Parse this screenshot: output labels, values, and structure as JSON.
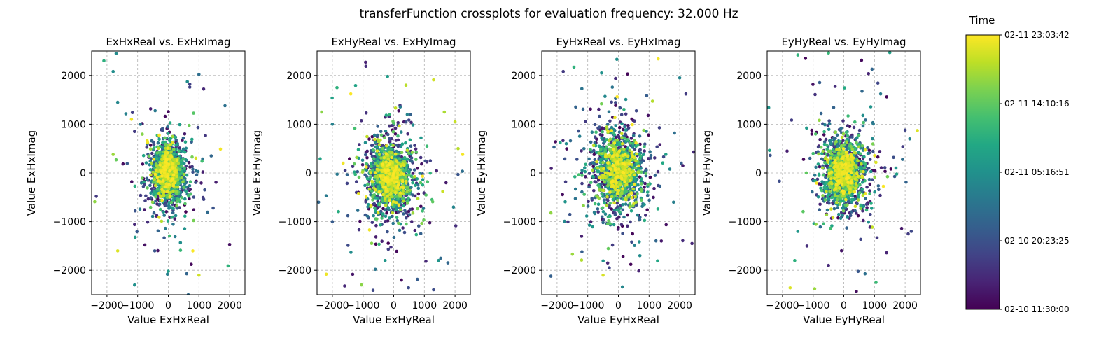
{
  "figure": {
    "title": "transferFunction crossplots for evaluation frequency: 32.000 Hz"
  },
  "colorbar": {
    "label": "Time",
    "colormap": "viridis",
    "ticks": [
      "02-11 23:03:42",
      "02-11 14:10:16",
      "02-11 05:16:51",
      "02-10 20:23:25",
      "02-10 11:30:00"
    ]
  },
  "chart_data": [
    {
      "type": "scatter",
      "title": "ExHxReal vs. ExHxImag",
      "xlabel": "Value ExHxReal",
      "ylabel": "Value ExHxImag",
      "xlim": [
        -2500,
        2500
      ],
      "ylim": [
        -2500,
        2500
      ],
      "xticks": [
        -2000,
        -1000,
        0,
        1000,
        2000
      ],
      "yticks": [
        -2000,
        -1000,
        0,
        1000,
        2000
      ],
      "grid": true,
      "center": [
        0,
        0
      ],
      "spread": [
        300,
        350
      ],
      "n_points": 1500,
      "color_scale": "time (02-10 11:30:00 to 02-11 23:03:42)",
      "outliers": [
        [
          -1700,
          2450
        ],
        [
          -2100,
          2300
        ],
        [
          -1800,
          2080
        ],
        [
          -2350,
          -480
        ],
        [
          -2400,
          -590
        ],
        [
          1000,
          2020
        ],
        [
          700,
          1820
        ],
        [
          620,
          1870
        ],
        [
          700,
          1760
        ],
        [
          1850,
          1380
        ],
        [
          -1650,
          -1600
        ],
        [
          -1080,
          -1320
        ],
        [
          -1100,
          -1060
        ],
        [
          -1100,
          850
        ],
        [
          -1200,
          1100
        ],
        [
          1700,
          490
        ],
        [
          1100,
          240
        ],
        [
          1400,
          350
        ],
        [
          -1800,
          380
        ],
        [
          -1700,
          270
        ],
        [
          -1100,
          -2300
        ],
        [
          600,
          -2070
        ],
        [
          0,
          -2020
        ],
        [
          -30,
          -2080
        ],
        [
          1000,
          -2100
        ],
        [
          1950,
          -1910
        ],
        [
          2000,
          -1470
        ],
        [
          650,
          -2500
        ],
        [
          800,
          -1600
        ],
        [
          -1650,
          1450
        ]
      ]
    },
    {
      "type": "scatter",
      "title": "ExHyReal vs. ExHyImag",
      "xlabel": "Value ExHyReal",
      "ylabel": "Value ExHyImag",
      "xlim": [
        -2500,
        2500
      ],
      "ylim": [
        -2500,
        2500
      ],
      "xticks": [
        -2000,
        -1000,
        0,
        1000,
        2000
      ],
      "yticks": [
        -2000,
        -1000,
        0,
        1000,
        2000
      ],
      "grid": true,
      "center": [
        -100,
        -100
      ],
      "spread": [
        400,
        420
      ],
      "n_points": 1500,
      "color_scale": "time (02-10 11:30:00 to 02-11 23:03:42)",
      "outliers": [
        [
          -2350,
          1250
        ],
        [
          -1850,
          1750
        ],
        [
          -1400,
          1620
        ],
        [
          -2450,
          -600
        ],
        [
          -2200,
          -470
        ],
        [
          -2200,
          -2080
        ],
        [
          -1600,
          -2320
        ],
        [
          -600,
          -1980
        ],
        [
          -280,
          -1800
        ],
        [
          1300,
          -2400
        ],
        [
          2000,
          1050
        ],
        [
          1650,
          1250
        ],
        [
          -2000,
          -1000
        ],
        [
          -1050,
          -2300
        ],
        [
          250,
          -2200
        ],
        [
          -200,
          1980
        ],
        [
          1300,
          1910
        ],
        [
          2100,
          500
        ],
        [
          2250,
          380
        ],
        [
          1600,
          -380
        ],
        [
          400,
          1800
        ],
        [
          -2400,
          290
        ],
        [
          -1650,
          200
        ],
        [
          1950,
          -700
        ],
        [
          -2000,
          1000
        ]
      ]
    },
    {
      "type": "scatter",
      "title": "EyHxReal vs. EyHxImag",
      "xlabel": "Value EyHxReal",
      "ylabel": "Value EyHxImag",
      "xlim": [
        -2500,
        2500
      ],
      "ylim": [
        -2500,
        2500
      ],
      "xticks": [
        -2000,
        -1000,
        0,
        1000,
        2000
      ],
      "yticks": [
        -2000,
        -1000,
        0,
        1000,
        2000
      ],
      "grid": true,
      "center": [
        0,
        50
      ],
      "spread": [
        450,
        450
      ],
      "n_points": 1500,
      "color_scale": "time (02-10 11:30:00 to 02-11 23:03:42)",
      "outliers": [
        [
          -1800,
          2080
        ],
        [
          -1450,
          2170
        ],
        [
          -550,
          2050
        ],
        [
          -50,
          2330
        ],
        [
          1300,
          2340
        ],
        [
          -1900,
          620
        ],
        [
          -2050,
          640
        ],
        [
          -2200,
          -2120
        ],
        [
          -1500,
          -1670
        ],
        [
          -1200,
          -1300
        ],
        [
          -1200,
          -1790
        ],
        [
          -300,
          -1950
        ],
        [
          130,
          -2340
        ],
        [
          700,
          -1700
        ],
        [
          1400,
          -1400
        ],
        [
          2400,
          -1450
        ],
        [
          2200,
          1620
        ],
        [
          2000,
          1950
        ],
        [
          2450,
          430
        ],
        [
          2100,
          150
        ],
        [
          2050,
          200
        ],
        [
          -2200,
          -820
        ],
        [
          -1400,
          -330
        ],
        [
          -1700,
          600
        ],
        [
          -500,
          -2100
        ],
        [
          300,
          2030
        ],
        [
          -350,
          -1850
        ],
        [
          1800,
          -600
        ],
        [
          -900,
          -1000
        ],
        [
          -2100,
          530
        ]
      ]
    },
    {
      "type": "scatter",
      "title": "EyHyReal vs. EyHyImag",
      "xlabel": "Value EyHyReal",
      "ylabel": "Value EyHyImag",
      "xlim": [
        -2500,
        2500
      ],
      "ylim": [
        -2500,
        2500
      ],
      "xticks": [
        -2000,
        -1000,
        0,
        1000,
        2000
      ],
      "yticks": [
        -2000,
        -1000,
        0,
        1000,
        2000
      ],
      "grid": true,
      "center": [
        0,
        0
      ],
      "spread": [
        380,
        380
      ],
      "n_points": 1500,
      "color_scale": "time (02-10 11:30:00 to 02-11 23:03:42)",
      "outliers": [
        [
          -2450,
          1340
        ],
        [
          -1500,
          2420
        ],
        [
          -1250,
          2350
        ],
        [
          -500,
          2460
        ],
        [
          1500,
          2470
        ],
        [
          2000,
          880
        ],
        [
          2400,
          870
        ],
        [
          2200,
          -1200
        ],
        [
          2100,
          -1250
        ],
        [
          -1750,
          -2360
        ],
        [
          -950,
          -2380
        ],
        [
          -1500,
          -1200
        ],
        [
          -1600,
          -1800
        ],
        [
          -1200,
          -1500
        ],
        [
          -500,
          -1900
        ],
        [
          1050,
          -2250
        ],
        [
          1200,
          1620
        ],
        [
          1400,
          1560
        ],
        [
          -2400,
          360
        ],
        [
          -2100,
          -170
        ],
        [
          -1000,
          400
        ],
        [
          -1850,
          450
        ],
        [
          -800,
          1080
        ],
        [
          1700,
          100
        ],
        [
          2150,
          700
        ]
      ]
    }
  ]
}
